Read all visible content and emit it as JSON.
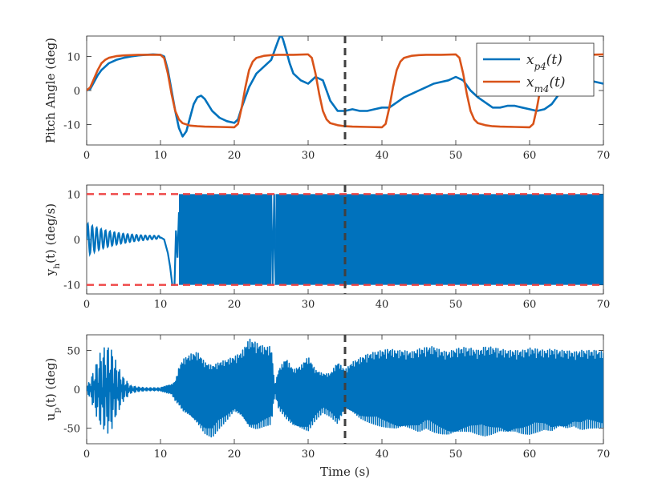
{
  "figure": {
    "xlabel": "Time (s)"
  },
  "colors": {
    "blue": "#0072BD",
    "orange": "#D95319",
    "dashed_marker": "#404040",
    "saturation_limit": "#EE4444",
    "axes": "#262626"
  },
  "chart_data": [
    {
      "type": "line",
      "panel": "top",
      "ylabel": "Pitch Angle (deg)",
      "xlim": [
        0,
        70
      ],
      "ylim": [
        -16,
        16
      ],
      "xticks": [
        0,
        10,
        20,
        30,
        40,
        50,
        60,
        70
      ],
      "yticks": [
        -10,
        0,
        10
      ],
      "legend": {
        "position": "top-right",
        "entries": [
          "x_{p4}(t)",
          "x_{m4}(t)"
        ]
      },
      "vline": 35,
      "series": [
        {
          "name": "x_{p4}(t)",
          "color": "#0072BD",
          "x": [
            0,
            0.5,
            1,
            1.5,
            2,
            2.5,
            3,
            3.5,
            4,
            4.5,
            5,
            5.5,
            6,
            7,
            8,
            9,
            10,
            10.5,
            11,
            11.5,
            12,
            12.5,
            13,
            13.5,
            14,
            14.5,
            15,
            15.5,
            16,
            17,
            18,
            19,
            20,
            20.5,
            21,
            22,
            23,
            24,
            25,
            25.5,
            26,
            26.3,
            26.6,
            27,
            27.5,
            28,
            29,
            30,
            31,
            32,
            33,
            34,
            35,
            36,
            37,
            38,
            39,
            40,
            41,
            42,
            43,
            44,
            45,
            46,
            47,
            48,
            49,
            50,
            51,
            52,
            53,
            54,
            55,
            56,
            57,
            58,
            59,
            60,
            61,
            62,
            63,
            64,
            65,
            66,
            67,
            68,
            69,
            70
          ],
          "y": [
            0,
            0.5,
            2.5,
            4.5,
            6,
            7,
            8,
            8.5,
            9,
            9.3,
            9.6,
            9.8,
            10,
            10.3,
            10.5,
            10.6,
            10.5,
            10,
            6,
            0,
            -6,
            -11,
            -13.5,
            -12,
            -8,
            -4,
            -2,
            -1.5,
            -2.5,
            -6,
            -8,
            -9,
            -9.5,
            -8.5,
            -5,
            1,
            5,
            7,
            9,
            12,
            15,
            16.5,
            15,
            12,
            8,
            5,
            3,
            2,
            4,
            3,
            -3,
            -6,
            -6,
            -5.5,
            -6,
            -6,
            -5.5,
            -5,
            -5,
            -3.5,
            -2,
            -1,
            0,
            1,
            2,
            2.5,
            3,
            4,
            3,
            0,
            -2,
            -3.5,
            -5,
            -5,
            -4.5,
            -4.5,
            -5,
            -5.5,
            -6,
            -5.5,
            -4,
            -1,
            2,
            4,
            4,
            3,
            2.5,
            2
          ]
        },
        {
          "name": "x_{m4}(t)",
          "color": "#D95319",
          "x": [
            0,
            0.5,
            1,
            1.5,
            2,
            2.5,
            3,
            4,
            5,
            6,
            7,
            8,
            10,
            10.5,
            11,
            11.5,
            12,
            12.5,
            13,
            14,
            15,
            16,
            18,
            20,
            20.5,
            21,
            21.5,
            22,
            22.5,
            23,
            24,
            25,
            26,
            28,
            30,
            30.5,
            31,
            31.5,
            32,
            32.5,
            33,
            34,
            35,
            36,
            38,
            40,
            40.5,
            41,
            41.5,
            42,
            42.5,
            43,
            44,
            45,
            46,
            48,
            50,
            50.5,
            51,
            51.5,
            52,
            52.5,
            53,
            54,
            55,
            56,
            58,
            60,
            60.5,
            61,
            61.5,
            62,
            62.5,
            63,
            64,
            65,
            66,
            68,
            70
          ],
          "y": [
            0,
            1,
            3.5,
            6,
            8,
            9,
            9.6,
            10.1,
            10.3,
            10.4,
            10.5,
            10.5,
            10.5,
            9.5,
            5,
            -1,
            -6,
            -8.5,
            -9.6,
            -10.3,
            -10.5,
            -10.6,
            -10.7,
            -10.8,
            -9.8,
            -5,
            1,
            6,
            8.5,
            9.6,
            10.2,
            10.4,
            10.5,
            10.5,
            10.6,
            9.6,
            5,
            -1,
            -6,
            -8.5,
            -9.6,
            -10.2,
            -10.5,
            -10.6,
            -10.7,
            -10.8,
            -9.8,
            -5,
            1,
            6,
            8.5,
            9.6,
            10.2,
            10.4,
            10.5,
            10.5,
            10.6,
            9.6,
            5,
            -1,
            -6,
            -8.5,
            -9.6,
            -10.2,
            -10.5,
            -10.6,
            -10.7,
            -10.8,
            -9.8,
            -5,
            1,
            6,
            8.5,
            9.6,
            10.2,
            10.4,
            10.5,
            10.5,
            10.6
          ]
        }
      ]
    },
    {
      "type": "line",
      "panel": "middle",
      "ylabel": "y_h(t) (deg/s)",
      "xlim": [
        0,
        70
      ],
      "ylim": [
        -12,
        12
      ],
      "xticks": [
        0,
        10,
        20,
        30,
        40,
        50,
        60,
        70
      ],
      "yticks": [
        -10,
        0,
        10
      ],
      "saturation_limits": [
        -10,
        10
      ],
      "vline": 35,
      "series": [
        {
          "name": "",
          "color": "#0072BD",
          "segments": [
            {
              "from": 0,
              "to": 10,
              "style": "decaying-oscillation",
              "amplitude_start": 3.5,
              "amplitude_end": 0.3,
              "period": 0.6
            },
            {
              "from": 10,
              "to": 12.5,
              "style": "transient",
              "points": [
                [
                  10,
                  0.5
                ],
                [
                  10.5,
                  0
                ],
                [
                  11,
                  -3
                ],
                [
                  11.3,
                  -6
                ],
                [
                  11.6,
                  -10
                ],
                [
                  11.9,
                  -10
                ],
                [
                  12.1,
                  2
                ],
                [
                  12.3,
                  -4
                ],
                [
                  12.5,
                  6
                ]
              ]
            },
            {
              "from": 12.5,
              "to": 25,
              "style": "saturated-band",
              "min": -10,
              "max": 10
            },
            {
              "from": 25,
              "to": 25.6,
              "style": "spike",
              "points": [
                [
                  25,
                  10
                ],
                [
                  25.2,
                  -10
                ],
                [
                  25.4,
                  10
                ],
                [
                  25.6,
                  -10
                ]
              ]
            },
            {
              "from": 25.6,
              "to": 70,
              "style": "saturated-band",
              "min": -10,
              "max": 10
            }
          ]
        }
      ]
    },
    {
      "type": "line",
      "panel": "bottom",
      "ylabel": "u_p(t) (deg)",
      "xlim": [
        0,
        70
      ],
      "ylim": [
        -70,
        70
      ],
      "xticks": [
        0,
        10,
        20,
        30,
        40,
        50,
        60,
        70
      ],
      "yticks": [
        -50,
        0,
        50
      ],
      "vline": 35,
      "series": [
        {
          "name": "",
          "color": "#0072BD",
          "envelope_x": [
            0,
            1,
            1.5,
            2,
            2.5,
            3,
            3.5,
            4,
            5,
            6,
            7,
            8,
            10,
            11,
            11.5,
            12,
            12.5,
            13,
            14,
            15,
            16,
            17,
            18,
            19,
            20,
            21,
            22,
            23,
            24,
            25,
            25.5,
            26,
            27,
            28,
            29,
            30,
            31,
            32,
            33,
            34,
            35,
            36,
            37,
            38,
            39,
            40,
            41,
            42,
            43,
            44,
            45,
            46,
            47,
            48,
            49,
            50,
            51,
            52,
            53,
            54,
            55,
            56,
            57,
            58,
            59,
            60,
            61,
            62,
            63,
            64,
            65,
            66,
            67,
            68,
            69,
            70
          ],
          "envelope_max": [
            2,
            25,
            40,
            50,
            55,
            57,
            50,
            35,
            15,
            5,
            3,
            2,
            2,
            5,
            6,
            10,
            28,
            38,
            45,
            48,
            35,
            30,
            35,
            38,
            42,
            48,
            65,
            60,
            55,
            55,
            5,
            25,
            40,
            25,
            30,
            42,
            25,
            20,
            20,
            35,
            25,
            35,
            40,
            45,
            48,
            50,
            52,
            50,
            50,
            48,
            52,
            54,
            55,
            50,
            48,
            52,
            54,
            53,
            50,
            55,
            54,
            52,
            50,
            50,
            50,
            53,
            52,
            50,
            52,
            50,
            50,
            48,
            50,
            50,
            50,
            48
          ],
          "envelope_min": [
            -2,
            -25,
            -40,
            -50,
            -55,
            -57,
            -50,
            -35,
            -15,
            -5,
            -3,
            -2,
            -2,
            -5,
            -6,
            -15,
            -20,
            -28,
            -35,
            -45,
            -58,
            -62,
            -50,
            -40,
            -28,
            -35,
            -50,
            -52,
            -48,
            -45,
            -5,
            -25,
            -38,
            -48,
            -52,
            -55,
            -40,
            -30,
            -35,
            -45,
            -25,
            -30,
            -38,
            -42,
            -45,
            -48,
            -50,
            -52,
            -50,
            -52,
            -55,
            -50,
            -55,
            -58,
            -60,
            -58,
            -56,
            -55,
            -58,
            -60,
            -58,
            -55,
            -58,
            -56,
            -58,
            -58,
            -55,
            -52,
            -55,
            -50,
            -52,
            -48,
            -52,
            -50,
            -50,
            -50
          ]
        }
      ]
    }
  ]
}
